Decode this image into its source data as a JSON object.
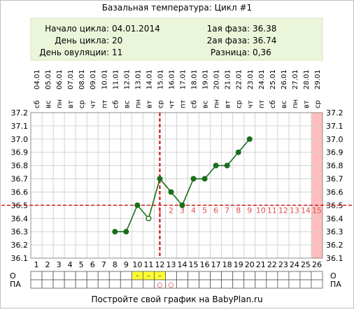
{
  "title": "Базальная температура: Цикл #1",
  "info": {
    "cycle_start_label": "Начало цикла:",
    "cycle_start": "04.01.2014",
    "cycle_day_label": "День цикла:",
    "cycle_day": "20",
    "ovulation_day_label": "День овуляции:",
    "ovulation_day": "11",
    "phase1_label": "1ая фаза:",
    "phase1": "36.38",
    "phase2_label": "2ая фаза:",
    "phase2": "36.74",
    "diff_label": "Разница:",
    "diff": "0,36"
  },
  "footer": "Постройте свой график на BabyPlan.ru",
  "row_labels": {
    "o": "О",
    "pa": "ПА"
  },
  "colors": {
    "grid": "#d3d3d3",
    "line": "#1a6e1a",
    "marker": "#1a6e1a",
    "cover_line": "#cc0000",
    "phase_numbers": "#e05050",
    "info_bg": "#eaf5da",
    "highlight_col": "#ffbdbd",
    "o_cell": "#ffff33"
  },
  "chart_data": {
    "type": "line",
    "title": "Базальная температура: Цикл #1",
    "x": [
      1,
      2,
      3,
      4,
      5,
      6,
      7,
      8,
      9,
      10,
      11,
      12,
      13,
      14,
      15,
      16,
      17,
      18,
      19,
      20,
      21,
      22,
      23,
      24,
      25,
      26
    ],
    "dates": [
      "04.01",
      "05.01",
      "06.01",
      "07.01",
      "08.01",
      "09.01",
      "10.01",
      "11.01",
      "12.01",
      "13.01",
      "14.01",
      "15.01",
      "16.01",
      "17.01",
      "18.01",
      "19.01",
      "20.01",
      "21.01",
      "22.01",
      "23.01",
      "24.01",
      "25.01",
      "26.01",
      "27.01",
      "28.01",
      "29.01"
    ],
    "weekdays": [
      "сб",
      "вс",
      "пн",
      "вт",
      "ср",
      "чт",
      "пт",
      "сб",
      "вс",
      "пн",
      "вт",
      "ср",
      "чт",
      "пт",
      "сб",
      "вс",
      "пн",
      "вт",
      "ср",
      "чт",
      "пт",
      "сб",
      "вс",
      "пн",
      "вт",
      "ср"
    ],
    "series": [
      {
        "points": [
          [
            8,
            36.3
          ],
          [
            9,
            36.3
          ],
          [
            10,
            36.5
          ],
          [
            11,
            36.4
          ],
          [
            12,
            36.7
          ],
          [
            13,
            36.6
          ],
          [
            14,
            36.5
          ],
          [
            15,
            36.7
          ],
          [
            16,
            36.7
          ],
          [
            17,
            36.8
          ],
          [
            18,
            36.8
          ],
          [
            19,
            36.9
          ],
          [
            20,
            37.0
          ]
        ]
      }
    ],
    "ylim": [
      36.1,
      37.2
    ],
    "yticks": [
      "36.1",
      "36.2",
      "36.3",
      "36.4",
      "36.5",
      "36.6",
      "36.7",
      "36.8",
      "36.9",
      "37.0",
      "37.1",
      "37.2"
    ],
    "cover_line": 36.5,
    "ovulation_day": 11,
    "highlighted_day": 26,
    "phase_day_labels": [
      {
        "x": 12,
        "label": "1"
      },
      {
        "x": 13,
        "label": "2"
      },
      {
        "x": 14,
        "label": "3"
      },
      {
        "x": 15,
        "label": "4"
      },
      {
        "x": 16,
        "label": "5"
      },
      {
        "x": 17,
        "label": "6"
      },
      {
        "x": 18,
        "label": "7"
      },
      {
        "x": 19,
        "label": "8"
      },
      {
        "x": 20,
        "label": "9"
      },
      {
        "x": 21,
        "label": "10"
      },
      {
        "x": 22,
        "label": "11"
      },
      {
        "x": 23,
        "label": "12"
      },
      {
        "x": 24,
        "label": "13"
      },
      {
        "x": 25,
        "label": "14"
      },
      {
        "x": 26,
        "label": "15"
      }
    ],
    "o_marks": [
      {
        "x": 10,
        "label": "–"
      },
      {
        "x": 11,
        "label": "–"
      },
      {
        "x": 12,
        "label": "–"
      }
    ],
    "pa_marks": [
      {
        "x": 12,
        "label": "○"
      },
      {
        "x": 13,
        "label": "○"
      }
    ],
    "grid": true
  }
}
